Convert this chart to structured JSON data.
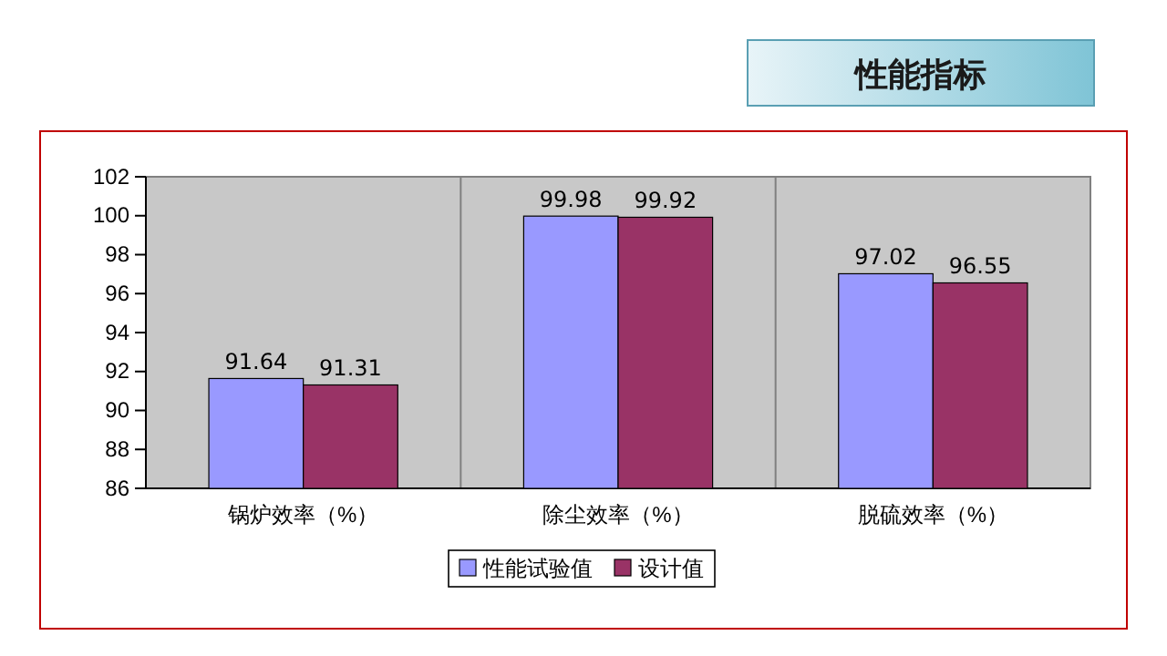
{
  "chart_data": {
    "type": "bar",
    "title": "性能指标",
    "categories": [
      "锅炉效率（%）",
      "除尘效率（%）",
      "脱硫效率（%）"
    ],
    "series": [
      {
        "name": "性能试验值",
        "color": "#9999ff",
        "values": [
          91.64,
          99.98,
          97.02
        ]
      },
      {
        "name": "设计值",
        "color": "#993366",
        "values": [
          91.31,
          99.92,
          96.55
        ]
      }
    ],
    "ylim": [
      86,
      102
    ],
    "yticks": [
      86,
      88,
      90,
      92,
      94,
      96,
      98,
      100,
      102
    ],
    "data_labels": true,
    "grid": "x",
    "legend": "bottom"
  }
}
